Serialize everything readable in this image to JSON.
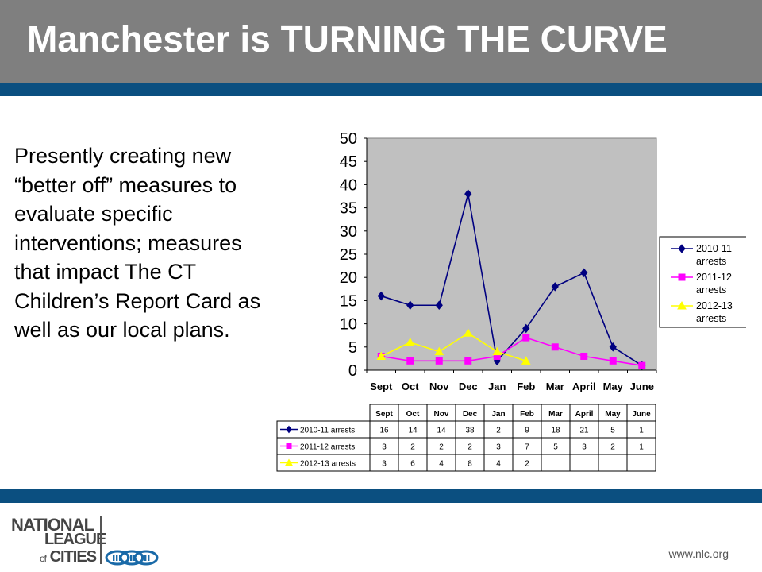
{
  "header": {
    "title": "Manchester is TURNING THE CURVE"
  },
  "body_text": [
    "Presently creating new",
    "“better off” measures to",
    "evaluate specific",
    "interventions; measures",
    "that impact The CT",
    "Children’s Report Card as",
    "well as our local plans."
  ],
  "chart_data": {
    "type": "line",
    "title": "",
    "xlabel": "",
    "ylabel": "",
    "categories": [
      "Sept",
      "Oct",
      "Nov",
      "Dec",
      "Jan",
      "Feb",
      "Mar",
      "April",
      "May",
      "June"
    ],
    "ylim": [
      0,
      50
    ],
    "yticks": [
      0,
      5,
      10,
      15,
      20,
      25,
      30,
      35,
      40,
      45,
      50
    ],
    "grid": false,
    "plot_background": "#c0c0c0",
    "legend_position": "right",
    "series": [
      {
        "name": "2010-11 arrests",
        "color": "#000080",
        "marker": "diamond",
        "values": [
          16,
          14,
          14,
          38,
          2,
          9,
          18,
          21,
          5,
          1
        ]
      },
      {
        "name": "2011-12 arrests",
        "color": "#ff00ff",
        "marker": "square",
        "values": [
          3,
          2,
          2,
          2,
          3,
          7,
          5,
          3,
          2,
          1
        ]
      },
      {
        "name": "2012-13 arrests",
        "color": "#ffff00",
        "marker": "triangle",
        "values": [
          3,
          6,
          4,
          8,
          4,
          2,
          null,
          null,
          null,
          null
        ]
      }
    ]
  },
  "footer": {
    "logo": {
      "line1": "NATIONAL",
      "line2": "LEAGUE",
      "line3_prefix": "of",
      "line3": "CITIES"
    },
    "url": "www.nlc.org"
  },
  "colors": {
    "title_bar": "#7f7f7f",
    "band": "#0b4f80",
    "plot_background": "#c0c0c0"
  }
}
